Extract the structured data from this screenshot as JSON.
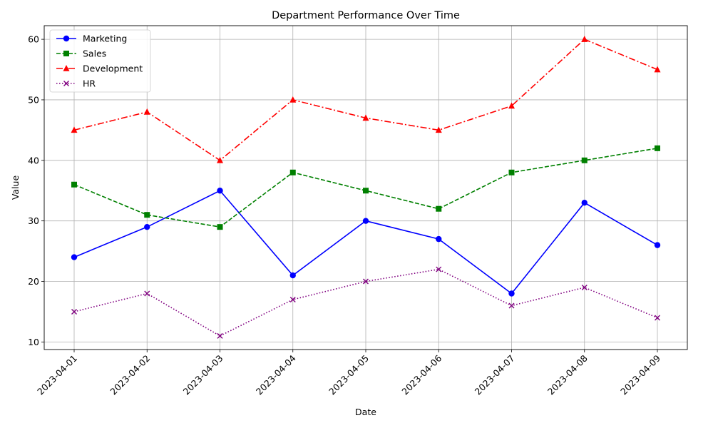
{
  "chart_data": {
    "type": "line",
    "title": "Department Performance Over Time",
    "xlabel": "Date",
    "ylabel": "Value",
    "categories": [
      "2023-04-01",
      "2023-04-02",
      "2023-04-03",
      "2023-04-04",
      "2023-04-05",
      "2023-04-06",
      "2023-04-07",
      "2023-04-08",
      "2023-04-09"
    ],
    "ylim": [
      8.75,
      62.25
    ],
    "yticks": [
      10,
      20,
      30,
      40,
      50,
      60
    ],
    "grid": true,
    "legend_position": "top-left",
    "series": [
      {
        "name": "Marketing",
        "values": [
          24,
          29,
          35,
          21,
          30,
          27,
          18,
          33,
          26
        ],
        "color": "#0000ff",
        "linestyle": "solid",
        "marker": "circle"
      },
      {
        "name": "Sales",
        "values": [
          36,
          31,
          29,
          38,
          35,
          32,
          38,
          40,
          42
        ],
        "color": "#008000",
        "linestyle": "dashed",
        "marker": "square"
      },
      {
        "name": "Development",
        "values": [
          45,
          48,
          40,
          50,
          47,
          45,
          49,
          60,
          55
        ],
        "color": "#ff0000",
        "linestyle": "dashdot",
        "marker": "triangle"
      },
      {
        "name": "HR",
        "values": [
          15,
          18,
          11,
          17,
          20,
          22,
          16,
          19,
          14
        ],
        "color": "#800080",
        "linestyle": "dotted",
        "marker": "x"
      }
    ]
  }
}
